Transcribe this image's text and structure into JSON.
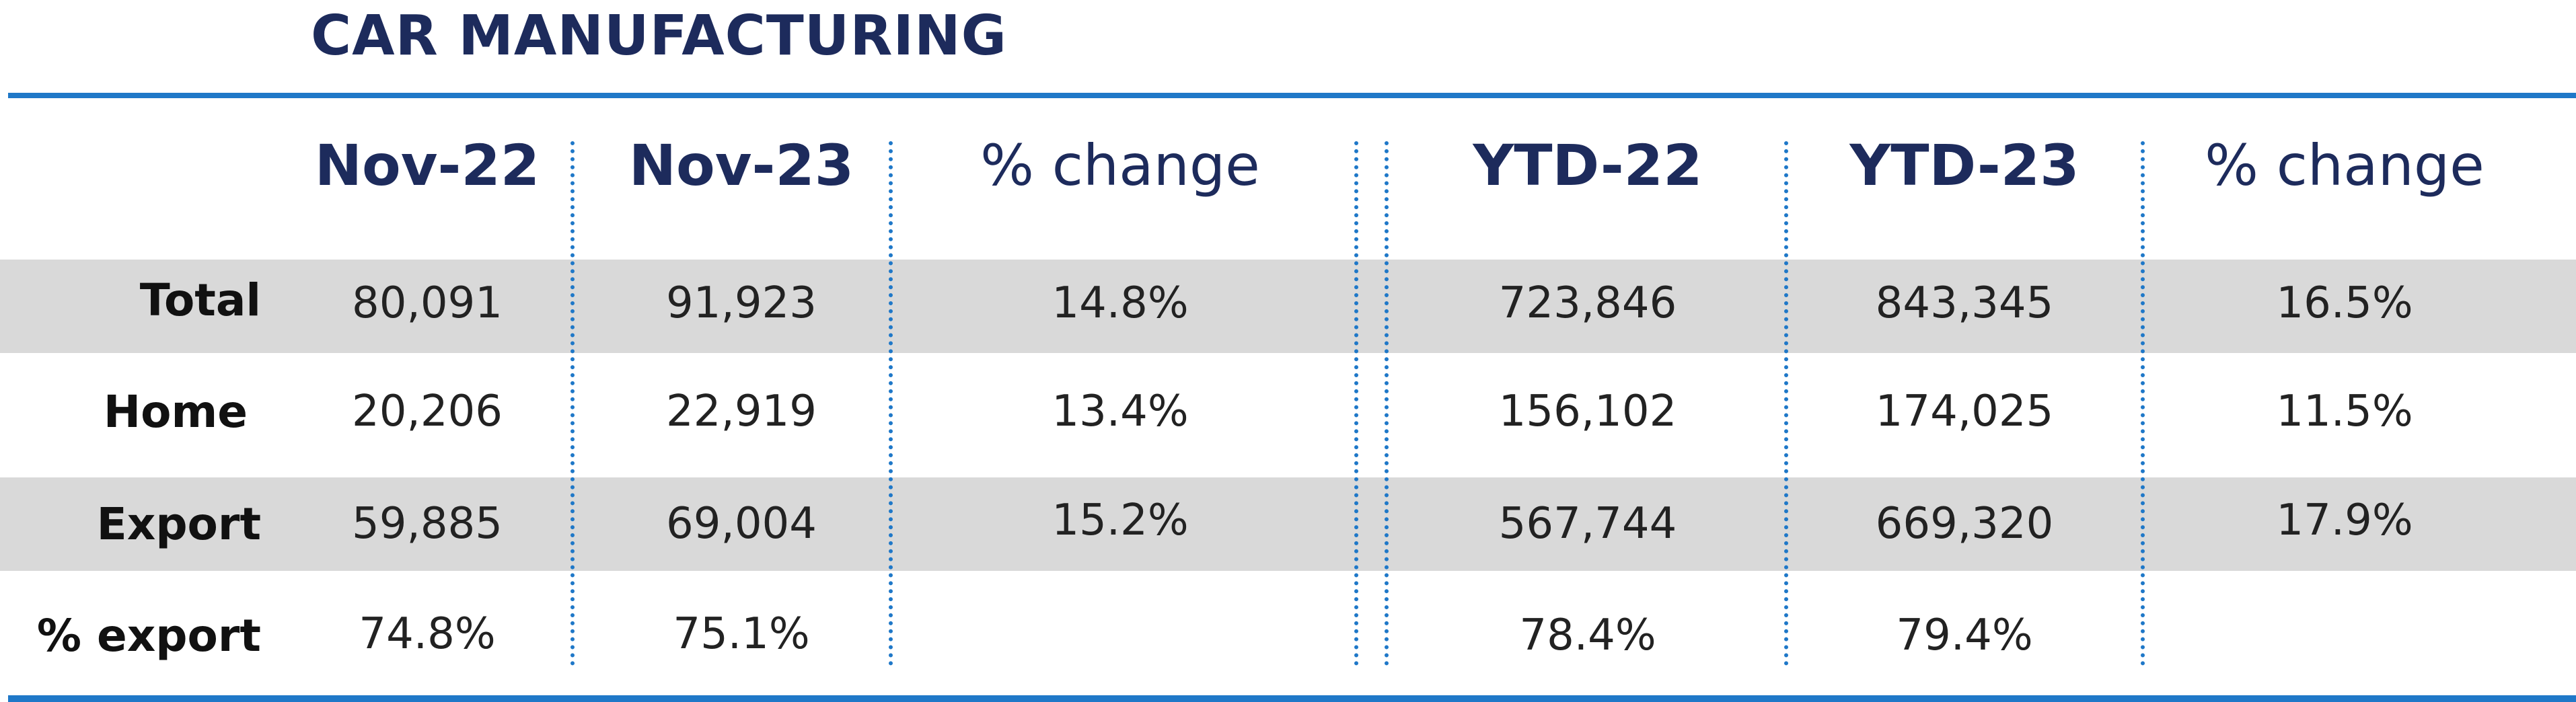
{
  "title": "CAR MANUFACTURING",
  "colors": {
    "rule": "#1f78c8",
    "heading": "#1d2b5c",
    "band": "#d9d9d9"
  },
  "columns": [
    "Nov-22",
    "Nov-23",
    "% change",
    "YTD-22",
    "YTD-23",
    "% change"
  ],
  "rows": [
    {
      "label": "Total",
      "cells": [
        "80,091",
        "91,923",
        "14.8%",
        "723,846",
        "843,345",
        "16.5%"
      ]
    },
    {
      "label": "Home",
      "cells": [
        "20,206",
        "22,919",
        "13.4%",
        "156,102",
        "174,025",
        "11.5%"
      ]
    },
    {
      "label": "Export",
      "cells": [
        "59,885",
        "69,004",
        "15.2%",
        "567,744",
        "669,320",
        "17.9%"
      ]
    },
    {
      "label": "% export",
      "cells": [
        "74.8%",
        "75.1%",
        "",
        "78.4%",
        "79.4%",
        ""
      ]
    }
  ]
}
